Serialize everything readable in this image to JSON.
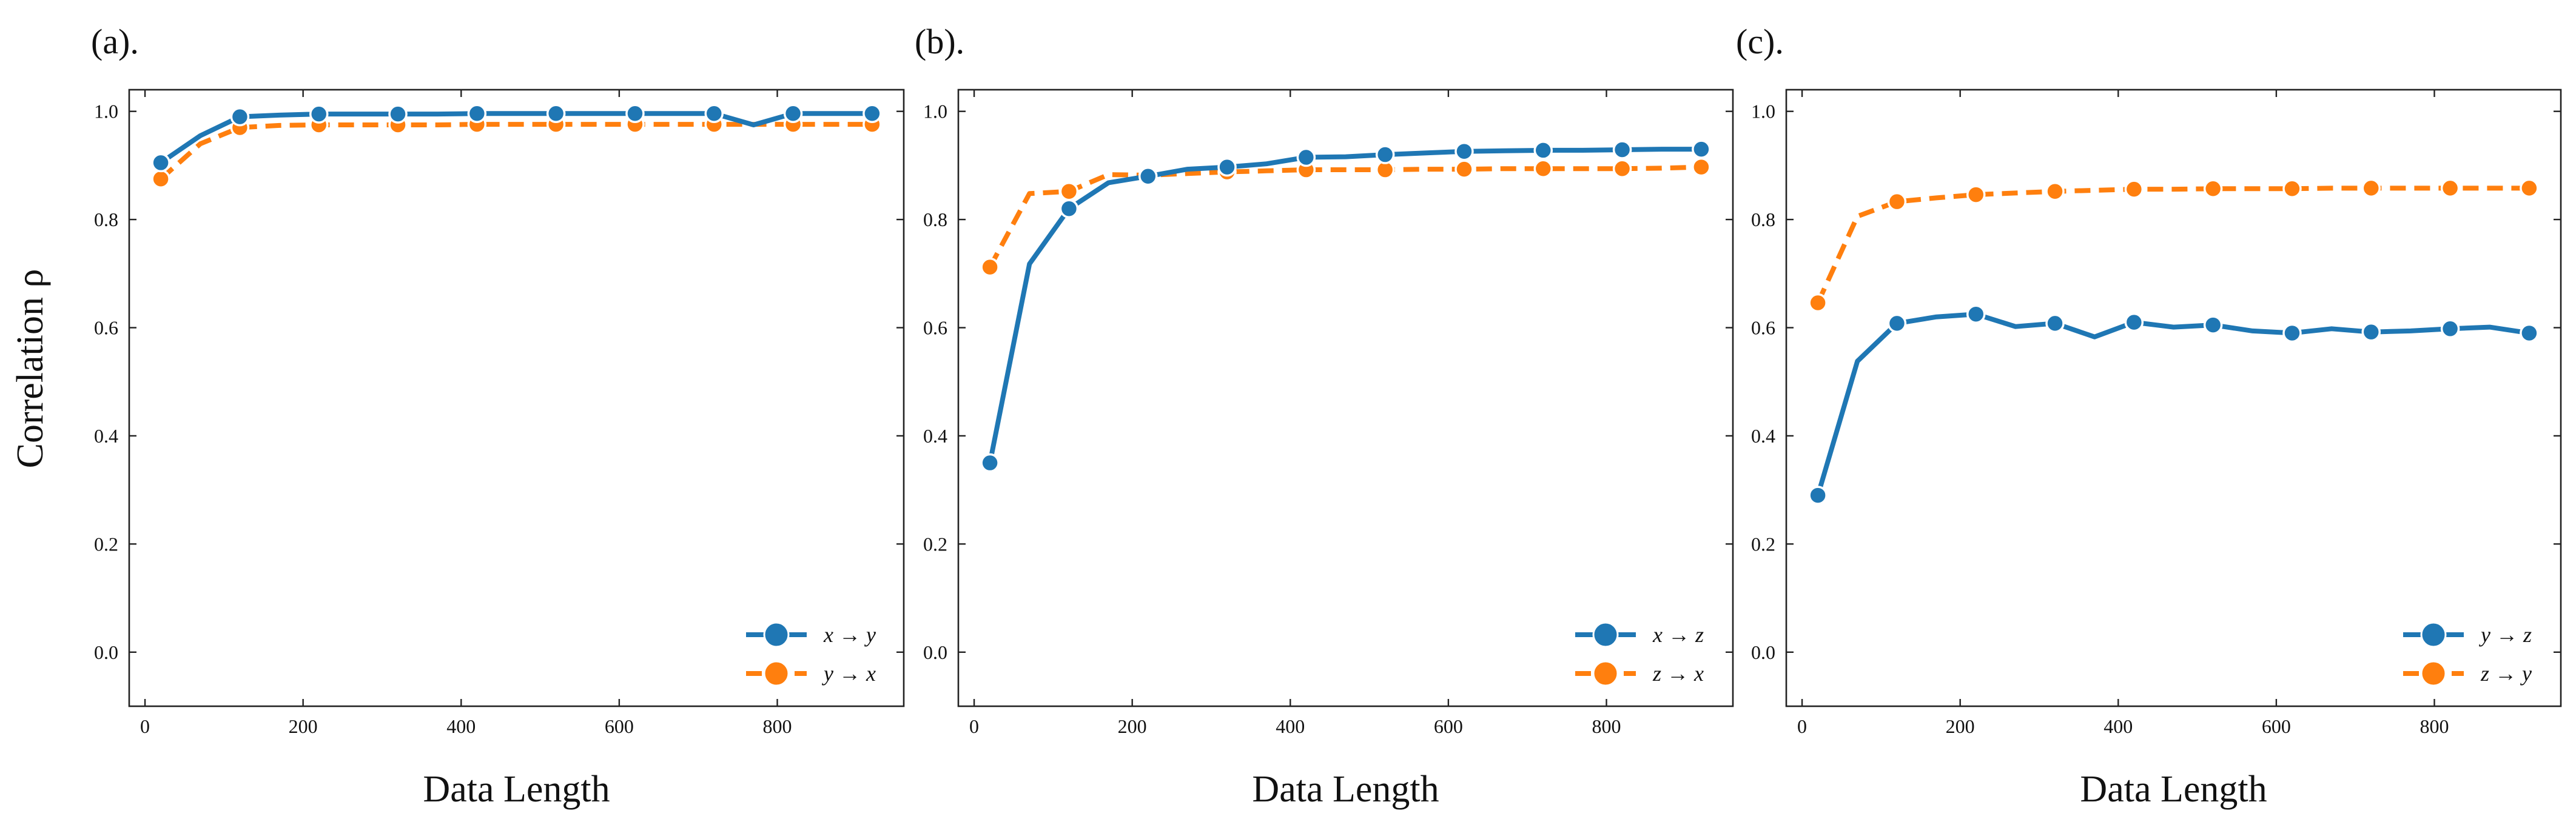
{
  "figure": {
    "ylabel": "Correlation ρ",
    "xlabel": "Data Length"
  },
  "colors": {
    "blue": "#1f77b4",
    "orange": "#ff7f0e"
  },
  "chart_data": [
    {
      "type": "line",
      "panel_label": "(a).",
      "xlabel": "Data Length",
      "ylabel": "Correlation ρ",
      "xlim": [
        -20,
        960
      ],
      "ylim": [
        -0.1,
        1.04
      ],
      "xticks": [
        0,
        200,
        400,
        600,
        800
      ],
      "yticks": [
        0.0,
        0.2,
        0.4,
        0.6,
        0.8,
        1.0
      ],
      "ytick_labels": [
        "0.0",
        "0.2",
        "0.4",
        "0.6",
        "0.8",
        "1.0"
      ],
      "grid": false,
      "legend_position": "lower-right",
      "series": [
        {
          "name": "x → y",
          "style": "solid",
          "color": "#1f77b4",
          "x": [
            20,
            70,
            120,
            170,
            220,
            270,
            320,
            370,
            420,
            470,
            520,
            570,
            620,
            670,
            720,
            770,
            820,
            870,
            920
          ],
          "y": [
            0.905,
            0.955,
            0.99,
            0.993,
            0.995,
            0.995,
            0.995,
            0.995,
            0.996,
            0.996,
            0.996,
            0.996,
            0.996,
            0.996,
            0.996,
            0.975,
            0.996,
            0.996,
            0.996
          ],
          "markers": [
            20,
            120,
            220,
            320,
            420,
            520,
            620,
            720,
            820,
            920
          ]
        },
        {
          "name": "y → x",
          "style": "dashed",
          "color": "#ff7f0e",
          "x": [
            20,
            70,
            120,
            170,
            220,
            270,
            320,
            370,
            420,
            470,
            520,
            570,
            620,
            670,
            720,
            770,
            820,
            870,
            920
          ],
          "y": [
            0.875,
            0.94,
            0.97,
            0.974,
            0.975,
            0.975,
            0.975,
            0.975,
            0.976,
            0.976,
            0.976,
            0.976,
            0.976,
            0.976,
            0.976,
            0.976,
            0.976,
            0.976,
            0.976
          ],
          "markers": [
            20,
            120,
            220,
            320,
            420,
            520,
            620,
            720,
            820,
            920
          ]
        }
      ]
    },
    {
      "type": "line",
      "panel_label": "(b).",
      "xlabel": "Data Length",
      "ylabel": "",
      "xlim": [
        -20,
        960
      ],
      "ylim": [
        -0.1,
        1.04
      ],
      "xticks": [
        0,
        200,
        400,
        600,
        800
      ],
      "yticks": [
        0.0,
        0.2,
        0.4,
        0.6,
        0.8,
        1.0
      ],
      "ytick_labels": [
        "0.0",
        "0.2",
        "0.4",
        "0.6",
        "0.8",
        "1.0"
      ],
      "grid": false,
      "legend_position": "lower-right",
      "series": [
        {
          "name": "x → z",
          "style": "solid",
          "color": "#1f77b4",
          "x": [
            20,
            70,
            120,
            170,
            220,
            270,
            320,
            370,
            420,
            470,
            520,
            570,
            620,
            670,
            720,
            770,
            820,
            870,
            920
          ],
          "y": [
            0.35,
            0.718,
            0.82,
            0.868,
            0.88,
            0.893,
            0.897,
            0.903,
            0.915,
            0.916,
            0.92,
            0.923,
            0.926,
            0.927,
            0.928,
            0.928,
            0.929,
            0.93,
            0.93
          ],
          "markers": [
            20,
            120,
            220,
            320,
            420,
            520,
            620,
            720,
            820,
            920
          ]
        },
        {
          "name": "z → x",
          "style": "dashed",
          "color": "#ff7f0e",
          "x": [
            20,
            70,
            120,
            170,
            220,
            270,
            320,
            370,
            420,
            470,
            520,
            570,
            620,
            670,
            720,
            770,
            820,
            870,
            920
          ],
          "y": [
            0.712,
            0.848,
            0.852,
            0.883,
            0.882,
            0.885,
            0.888,
            0.89,
            0.892,
            0.892,
            0.892,
            0.893,
            0.893,
            0.894,
            0.894,
            0.894,
            0.894,
            0.895,
            0.897
          ],
          "markers": [
            20,
            120,
            220,
            320,
            420,
            520,
            620,
            720,
            820,
            920
          ]
        }
      ]
    },
    {
      "type": "line",
      "panel_label": "(c).",
      "xlabel": "Data Length",
      "ylabel": "",
      "xlim": [
        -20,
        960
      ],
      "ylim": [
        -0.1,
        1.04
      ],
      "xticks": [
        0,
        200,
        400,
        600,
        800
      ],
      "yticks": [
        0.0,
        0.2,
        0.4,
        0.6,
        0.8,
        1.0
      ],
      "ytick_labels": [
        "0.0",
        "0.2",
        "0.4",
        "0.6",
        "0.8",
        "1.0"
      ],
      "grid": false,
      "legend_position": "lower-right",
      "series": [
        {
          "name": "y → z",
          "style": "solid",
          "color": "#1f77b4",
          "x": [
            20,
            70,
            120,
            170,
            220,
            270,
            320,
            370,
            420,
            470,
            520,
            570,
            620,
            670,
            720,
            770,
            820,
            870,
            920
          ],
          "y": [
            0.29,
            0.538,
            0.608,
            0.62,
            0.625,
            0.602,
            0.608,
            0.583,
            0.61,
            0.601,
            0.605,
            0.594,
            0.59,
            0.598,
            0.592,
            0.594,
            0.598,
            0.601,
            0.59
          ],
          "markers": [
            20,
            120,
            220,
            320,
            420,
            520,
            620,
            720,
            820,
            920
          ]
        },
        {
          "name": "z → y",
          "style": "dashed",
          "color": "#ff7f0e",
          "x": [
            20,
            70,
            120,
            170,
            220,
            270,
            320,
            370,
            420,
            470,
            520,
            570,
            620,
            670,
            720,
            770,
            820,
            870,
            920
          ],
          "y": [
            0.646,
            0.806,
            0.833,
            0.84,
            0.846,
            0.849,
            0.852,
            0.854,
            0.856,
            0.856,
            0.857,
            0.857,
            0.857,
            0.858,
            0.858,
            0.858,
            0.858,
            0.858,
            0.858
          ],
          "markers": [
            20,
            120,
            220,
            320,
            420,
            520,
            620,
            720,
            820,
            920
          ]
        }
      ]
    }
  ]
}
